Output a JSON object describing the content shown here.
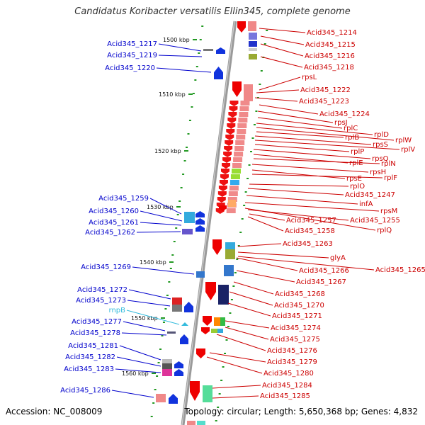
{
  "title": "Candidatus Koribacter versatilis Ellin345, complete genome",
  "footer": {
    "accession": "Accession: NC_008009",
    "topology": "Topology: circular; Length: 5,650,368 bp; Genes: 4,832"
  },
  "colors": {
    "forward_label": "#0000cc",
    "reverse_label": "#cc0000",
    "rna_label": "#33bbdd",
    "backbone": "#888888",
    "tick": "#229922"
  },
  "kbp_ticks": [
    {
      "label": "1500 kbp"
    },
    {
      "label": "1510 kbp"
    },
    {
      "label": "1520 kbp"
    },
    {
      "label": "1530 kbp"
    },
    {
      "label": "1540 kbp"
    },
    {
      "label": "1550 kbp"
    },
    {
      "label": "1560 kbp"
    }
  ],
  "left_labels": [
    {
      "text": "Acid345_1217",
      "strand": "forward"
    },
    {
      "text": "Acid345_1219",
      "strand": "forward"
    },
    {
      "text": "Acid345_1220",
      "strand": "forward"
    },
    {
      "text": "Acid345_1259",
      "strand": "forward"
    },
    {
      "text": "Acid345_1260",
      "strand": "forward"
    },
    {
      "text": "Acid345_1261",
      "strand": "forward"
    },
    {
      "text": "Acid345_1262",
      "strand": "forward"
    },
    {
      "text": "Acid345_1269",
      "strand": "forward"
    },
    {
      "text": "Acid345_1272",
      "strand": "forward"
    },
    {
      "text": "Acid345_1273",
      "strand": "forward"
    },
    {
      "text": "rnpB",
      "strand": "rna"
    },
    {
      "text": "Acid345_1277",
      "strand": "forward"
    },
    {
      "text": "Acid345_1278",
      "strand": "forward"
    },
    {
      "text": "Acid345_1281",
      "strand": "forward"
    },
    {
      "text": "Acid345_1282",
      "strand": "forward"
    },
    {
      "text": "Acid345_1283",
      "strand": "forward"
    },
    {
      "text": "Acid345_1286",
      "strand": "forward"
    }
  ],
  "right_labels": [
    {
      "text": "Acid345_1214"
    },
    {
      "text": "Acid345_1215"
    },
    {
      "text": "Acid345_1216"
    },
    {
      "text": "Acid345_1218"
    },
    {
      "text": "rpsL"
    },
    {
      "text": "Acid345_1222"
    },
    {
      "text": "Acid345_1223"
    },
    {
      "text": "Acid345_1224"
    },
    {
      "text": "rpsJ"
    },
    {
      "text": "rplC"
    },
    {
      "text": "rplD"
    },
    {
      "text": "rplW"
    },
    {
      "text": "rplB"
    },
    {
      "text": "rpsS"
    },
    {
      "text": "rplV"
    },
    {
      "text": "rplP"
    },
    {
      "text": "rpsQ"
    },
    {
      "text": "rplE"
    },
    {
      "text": "rplN"
    },
    {
      "text": "rpsH"
    },
    {
      "text": "rpsE"
    },
    {
      "text": "rplF"
    },
    {
      "text": "rplO"
    },
    {
      "text": "Acid345_1247"
    },
    {
      "text": "infA"
    },
    {
      "text": "rpsM"
    },
    {
      "text": "Acid345_1257"
    },
    {
      "text": "Acid345_1255"
    },
    {
      "text": "Acid345_1258"
    },
    {
      "text": "rplQ"
    },
    {
      "text": "Acid345_1263"
    },
    {
      "text": "glyA"
    },
    {
      "text": "Acid345_1266"
    },
    {
      "text": "Acid345_1265"
    },
    {
      "text": "Acid345_1267"
    },
    {
      "text": "Acid345_1268"
    },
    {
      "text": "Acid345_1270"
    },
    {
      "text": "Acid345_1271"
    },
    {
      "text": "Acid345_1274"
    },
    {
      "text": "Acid345_1275"
    },
    {
      "text": "Acid345_1276"
    },
    {
      "text": "Acid345_1279"
    },
    {
      "text": "Acid345_1280"
    },
    {
      "text": "Acid345_1284"
    },
    {
      "text": "Acid345_1285"
    }
  ]
}
